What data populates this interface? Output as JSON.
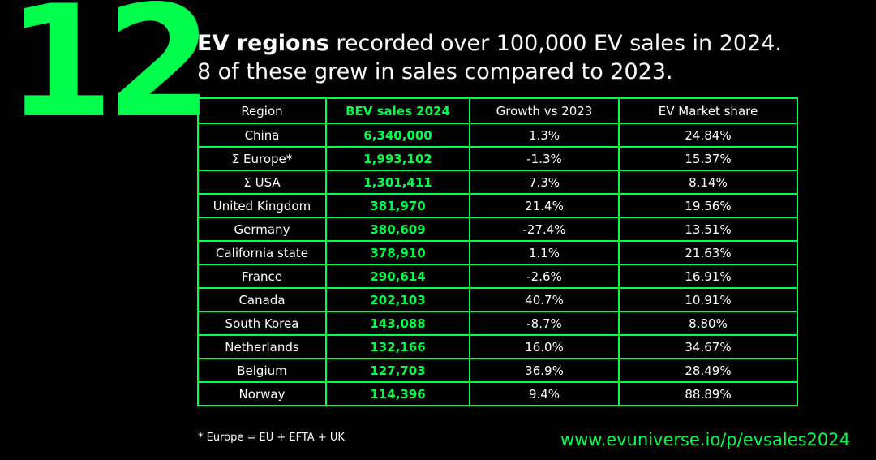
{
  "colors": {
    "background": "#000000",
    "accent_green": "#00ff4c",
    "text": "#ffffff"
  },
  "headline": {
    "number": "12",
    "line1_bold": "EV regions",
    "line1_rest": " recorded over 100,000 EV sales in 2024.",
    "line2": "8 of these grew in sales compared to 2023."
  },
  "table": {
    "headers": {
      "region": "Region",
      "sales": "BEV sales 2024",
      "growth": "Growth vs 2023",
      "share": "EV Market share"
    },
    "rows": [
      {
        "region": "China",
        "sales": "6,340,000",
        "growth": "1.3%",
        "share": "24.84%"
      },
      {
        "region": "Σ Europe*",
        "sales": "1,993,102",
        "growth": "-1.3%",
        "share": "15.37%"
      },
      {
        "region": "Σ USA",
        "sales": "1,301,411",
        "growth": "7.3%",
        "share": "8.14%"
      },
      {
        "region": "United Kingdom",
        "sales": "381,970",
        "growth": "21.4%",
        "share": "19.56%"
      },
      {
        "region": "Germany",
        "sales": "380,609",
        "growth": "-27.4%",
        "share": "13.51%"
      },
      {
        "region": "California state",
        "sales": "378,910",
        "growth": "1.1%",
        "share": "21.63%"
      },
      {
        "region": "France",
        "sales": "290,614",
        "growth": "-2.6%",
        "share": "16.91%"
      },
      {
        "region": "Canada",
        "sales": "202,103",
        "growth": "40.7%",
        "share": "10.91%"
      },
      {
        "region": "South Korea",
        "sales": "143,088",
        "growth": "-8.7%",
        "share": "8.80%"
      },
      {
        "region": "Netherlands",
        "sales": "132,166",
        "growth": "16.0%",
        "share": "34.67%"
      },
      {
        "region": "Belgium",
        "sales": "127,703",
        "growth": "36.9%",
        "share": "28.49%"
      },
      {
        "region": "Norway",
        "sales": "114,396",
        "growth": "9.4%",
        "share": "88.89%"
      }
    ]
  },
  "footnote": "* Europe = EU + EFTA + UK",
  "source_link": "www.evuniverse.io/p/evsales2024"
}
